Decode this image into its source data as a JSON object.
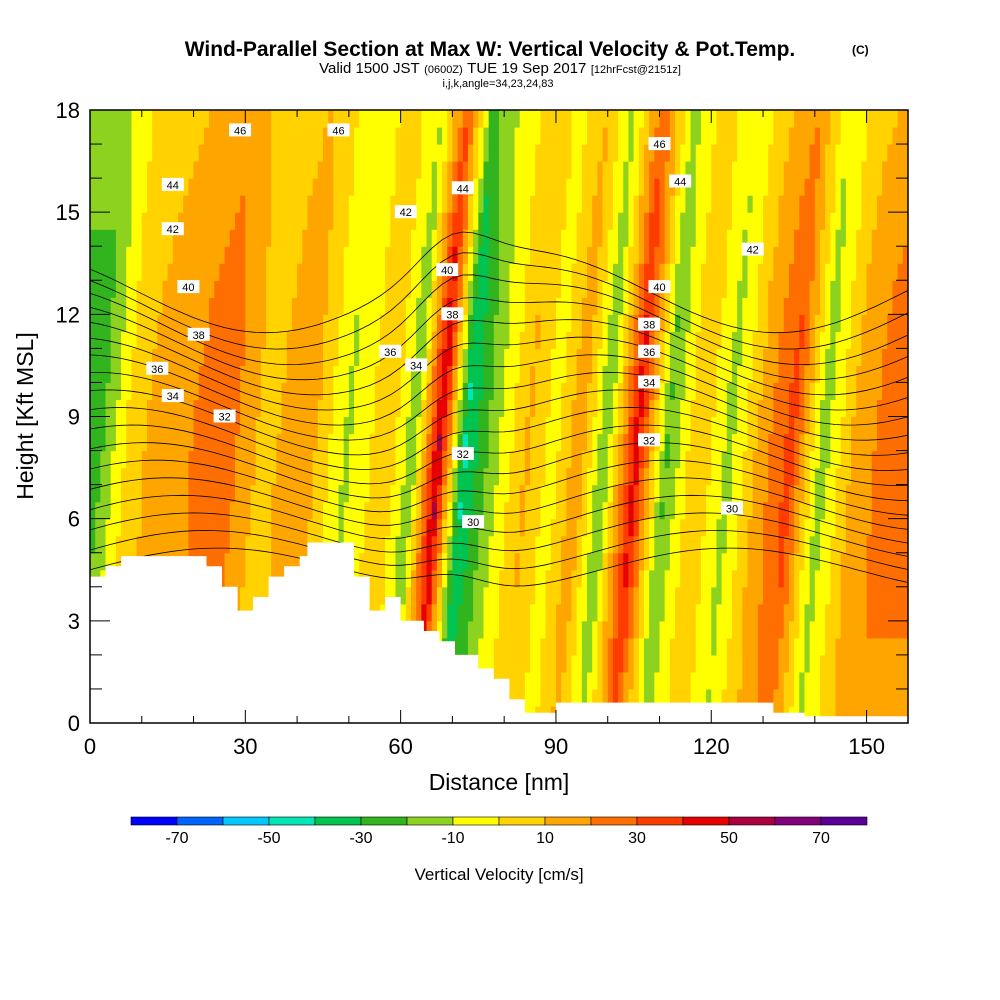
{
  "title": {
    "main": "Wind-Parallel Section at Max W: Vertical Velocity & Pot.Temp.",
    "copyright": "(C)",
    "valid_a": "Valid 1500 JST",
    "valid_utc": "(0600Z)",
    "valid_b": "TUE 19 Sep 2017",
    "forecast": "[12hrFcst@2151z]",
    "indices": "i,j,k,angle=34,23,24,83"
  },
  "chart_data": {
    "type": "heatmap",
    "xlabel": "Distance [nm]",
    "ylabel": "Height [Kft MSL]",
    "xlim": [
      0,
      158
    ],
    "ylim": [
      0,
      18
    ],
    "x_ticks": [
      0,
      30,
      60,
      90,
      120,
      150
    ],
    "y_ticks": [
      0,
      3,
      6,
      9,
      12,
      15,
      18
    ],
    "colorbar": {
      "title": "Vertical Velocity [cm/s]",
      "min": -80,
      "max": 80,
      "step": 10,
      "tick_values": [
        -70,
        -50,
        -30,
        -10,
        10,
        30,
        50,
        70
      ],
      "tick_labels": [
        "-70",
        "-50",
        "-30",
        "-10",
        "10",
        "30",
        "50",
        "70"
      ],
      "colors": [
        "#0000ff",
        "#0064ff",
        "#00c8ff",
        "#00e6b4",
        "#00c350",
        "#32b41e",
        "#8cd21e",
        "#ffff00",
        "#ffd200",
        "#ffa500",
        "#ff6e00",
        "#ff3c00",
        "#e60000",
        "#aa0041",
        "#820078",
        "#5a0096"
      ]
    },
    "terrain_profile": {
      "x": [
        0,
        3,
        3,
        6,
        6,
        22.5,
        22.5,
        25.5,
        25.5,
        28.5,
        28.5,
        31.5,
        31.5,
        34.5,
        34.5,
        37.5,
        37.5,
        40.5,
        40.5,
        42,
        42,
        51,
        51,
        54,
        54,
        57,
        57,
        60,
        60,
        64.5,
        64.5,
        67.5,
        67.5,
        70.5,
        70.5,
        75,
        75,
        78,
        78,
        81,
        81,
        84,
        84,
        90,
        90,
        132,
        132,
        138,
        138,
        158
      ],
      "y": [
        4.3,
        4.3,
        4.6,
        4.6,
        4.9,
        4.9,
        4.6,
        4.6,
        4.0,
        4.0,
        3.3,
        3.3,
        3.7,
        3.7,
        4.3,
        4.3,
        4.6,
        4.6,
        4.9,
        4.9,
        5.3,
        5.3,
        4.3,
        4.3,
        3.3,
        3.3,
        3.7,
        3.7,
        3.0,
        3.0,
        2.7,
        2.7,
        2.4,
        2.4,
        2.0,
        2.0,
        1.6,
        1.6,
        1.3,
        1.3,
        0.7,
        0.7,
        0.3,
        0.3,
        0.6,
        0.6,
        0.3,
        0.3,
        0.2,
        0.2
      ]
    },
    "velocity_field": [
      {
        "x": 2,
        "w": -25
      },
      {
        "x": 9,
        "w": 8
      },
      {
        "x": 17,
        "w": 16
      },
      {
        "x": 26,
        "w": 28
      },
      {
        "x": 34,
        "w": 6
      },
      {
        "x": 42,
        "w": 18
      },
      {
        "x": 50,
        "w": -12
      },
      {
        "x": 58,
        "w": 8
      },
      {
        "x": 63,
        "w": -18
      },
      {
        "x": 68,
        "w": 52
      },
      {
        "x": 73,
        "w": -42
      },
      {
        "x": 78,
        "w": -16
      },
      {
        "x": 85,
        "w": 12
      },
      {
        "x": 90,
        "w": -5
      },
      {
        "x": 95,
        "w": 18
      },
      {
        "x": 100,
        "w": -20
      },
      {
        "x": 106,
        "w": 46
      },
      {
        "x": 112,
        "w": -22
      },
      {
        "x": 118,
        "w": 10
      },
      {
        "x": 124,
        "w": -14
      },
      {
        "x": 130,
        "w": 14
      },
      {
        "x": 136,
        "w": 34
      },
      {
        "x": 142,
        "w": -16
      },
      {
        "x": 148,
        "w": 12
      },
      {
        "x": 154,
        "w": 24
      }
    ],
    "isentropes": {
      "levels": [
        30,
        32,
        34,
        36,
        38,
        40,
        42,
        44,
        46
      ],
      "labels": [
        {
          "text": "30",
          "x": 124,
          "y": 6.3
        },
        {
          "text": "30",
          "x": 74,
          "y": 5.9
        },
        {
          "text": "32",
          "x": 72,
          "y": 7.9
        },
        {
          "text": "32",
          "x": 108,
          "y": 8.3
        },
        {
          "text": "32",
          "x": 26,
          "y": 9.0
        },
        {
          "text": "34",
          "x": 16,
          "y": 9.6
        },
        {
          "text": "34",
          "x": 63,
          "y": 10.5
        },
        {
          "text": "34",
          "x": 108,
          "y": 10.0
        },
        {
          "text": "36",
          "x": 13,
          "y": 10.4
        },
        {
          "text": "36",
          "x": 58,
          "y": 10.9
        },
        {
          "text": "36",
          "x": 108,
          "y": 10.9
        },
        {
          "text": "38",
          "x": 21,
          "y": 11.4
        },
        {
          "text": "38",
          "x": 70,
          "y": 12.0
        },
        {
          "text": "38",
          "x": 108,
          "y": 11.7
        },
        {
          "text": "40",
          "x": 19,
          "y": 12.8
        },
        {
          "text": "40",
          "x": 69,
          "y": 13.3
        },
        {
          "text": "40",
          "x": 110,
          "y": 12.8
        },
        {
          "text": "42",
          "x": 16,
          "y": 14.5
        },
        {
          "text": "42",
          "x": 61,
          "y": 15.0
        },
        {
          "text": "42",
          "x": 128,
          "y": 13.9
        },
        {
          "text": "44",
          "x": 16,
          "y": 15.8
        },
        {
          "text": "44",
          "x": 72,
          "y": 15.7
        },
        {
          "text": "44",
          "x": 114,
          "y": 15.9
        },
        {
          "text": "46",
          "x": 29,
          "y": 17.4
        },
        {
          "text": "46",
          "x": 48,
          "y": 17.4
        },
        {
          "text": "46",
          "x": 110,
          "y": 17.0
        }
      ]
    }
  }
}
